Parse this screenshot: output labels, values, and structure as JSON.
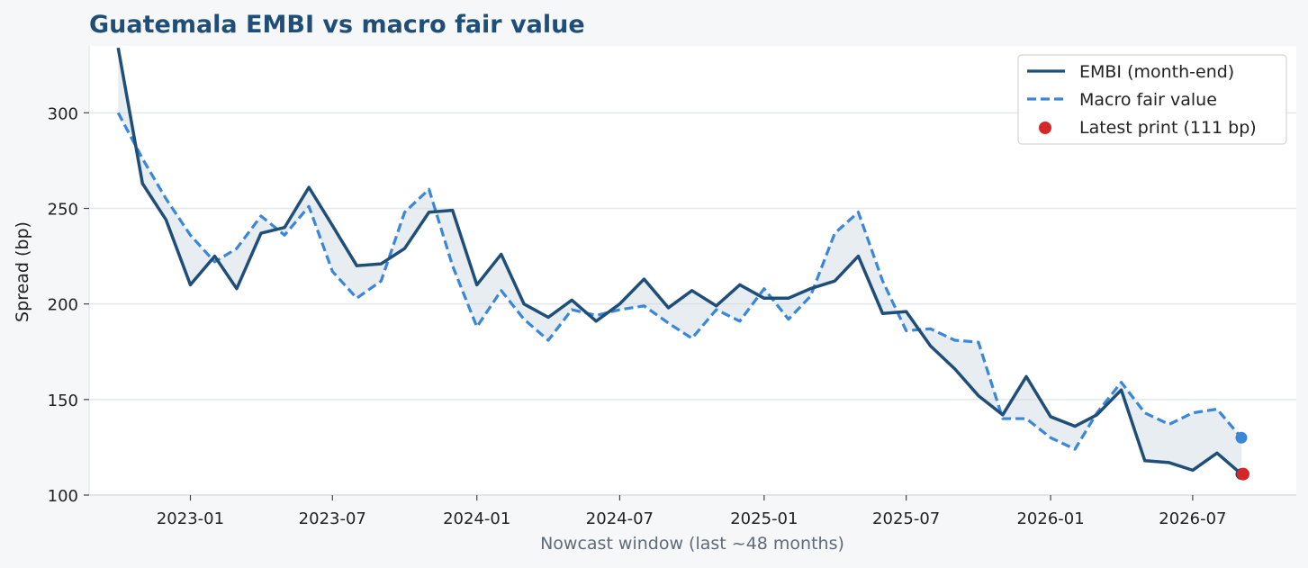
{
  "chart_data": {
    "type": "line",
    "title": "Guatemala EMBI vs macro fair value",
    "xlabel": "Nowcast window (last ~48 months)",
    "ylabel": "Spread (bp)",
    "ylim": [
      100,
      335
    ],
    "xlim": [
      "2022-08-25",
      "2026-11-10"
    ],
    "yticks": [
      100,
      150,
      200,
      250,
      300
    ],
    "xticks": [
      "2023-01",
      "2023-07",
      "2024-01",
      "2024-07",
      "2025-01",
      "2025-07",
      "2026-01",
      "2026-07"
    ],
    "grid": "horizontal",
    "legend_position": "top-right",
    "x": [
      "2022-10-01",
      "2022-11-01",
      "2022-12-01",
      "2023-01-01",
      "2023-02-01",
      "2023-03-01",
      "2023-04-01",
      "2023-05-01",
      "2023-06-01",
      "2023-07-01",
      "2023-08-01",
      "2023-09-01",
      "2023-10-01",
      "2023-11-01",
      "2023-12-01",
      "2024-01-01",
      "2024-02-01",
      "2024-03-01",
      "2024-04-01",
      "2024-05-01",
      "2024-06-01",
      "2024-07-01",
      "2024-08-01",
      "2024-09-01",
      "2024-10-01",
      "2024-11-01",
      "2024-12-01",
      "2025-01-01",
      "2025-02-01",
      "2025-03-01",
      "2025-04-01",
      "2025-05-01",
      "2025-06-01",
      "2025-07-01",
      "2025-08-01",
      "2025-09-01",
      "2025-10-01",
      "2025-11-01",
      "2025-12-01",
      "2026-01-01",
      "2026-02-01",
      "2026-03-01",
      "2026-04-01",
      "2026-05-01",
      "2026-06-01",
      "2026-07-01",
      "2026-08-01",
      "2026-09-01"
    ],
    "series": [
      {
        "name": "EMBI (month-end)",
        "color": "#1f4e79",
        "style": "solid",
        "values": [
          334,
          263,
          244,
          210,
          225,
          208,
          237,
          240,
          261,
          241,
          220,
          221,
          229,
          248,
          249,
          210,
          226,
          200,
          193,
          202,
          191,
          200,
          213,
          198,
          207,
          199,
          210,
          203,
          203,
          208,
          212,
          225,
          195,
          196,
          178,
          166,
          152,
          142,
          162,
          141,
          136,
          142,
          155,
          118,
          117,
          113,
          122,
          111
        ]
      },
      {
        "name": "Macro fair value",
        "color": "#3a87d9",
        "style": "dashed",
        "values": [
          300,
          276,
          255,
          236,
          222,
          229,
          246,
          236,
          251,
          217,
          203,
          212,
          248,
          260,
          220,
          188,
          207,
          192,
          181,
          197,
          194,
          197,
          199,
          190,
          182,
          197,
          191,
          208,
          192,
          204,
          237,
          248,
          212,
          186,
          187,
          181,
          180,
          140,
          140,
          130,
          124,
          143,
          159,
          143,
          137,
          143,
          145,
          130
        ]
      }
    ],
    "latest_print": {
      "name": "Latest print (111 bp)",
      "x": "2026-09-01",
      "value": 111,
      "color": "#d62728"
    },
    "fill_between": {
      "color": "#cdd6e3"
    }
  }
}
